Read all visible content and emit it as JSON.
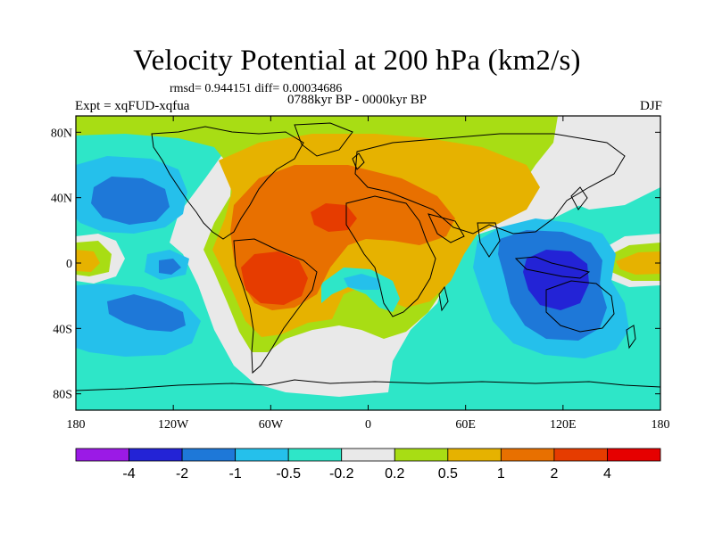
{
  "header": {
    "title": "Velocity Potential at 200 hPa (km2/s)",
    "stats": "rmsd= 0.944151 diff= 0.00034686",
    "experiment": "Expt = xqFUD-xqfua",
    "period": "0788kyr BP - 0000kyr BP",
    "season": "DJF"
  },
  "map": {
    "projection": "cylindrical-equidistant",
    "lon_range": [
      -180,
      180
    ],
    "lat_range": [
      -90,
      90
    ],
    "lat_tick_labels": [
      "80N",
      "40N",
      "0",
      "40S",
      "80S"
    ],
    "lon_tick_labels": [
      "180",
      "120W",
      "60W",
      "0",
      "60E",
      "120E",
      "180"
    ]
  },
  "colorbar": {
    "labels": [
      "-4",
      "-2",
      "-1",
      "-0.5",
      "-0.2",
      "0.2",
      "0.5",
      "1",
      "2",
      "4"
    ],
    "colors": [
      "#9b1ae6",
      "#2323d6",
      "#1e78d8",
      "#25c0eb",
      "#2ee6c8",
      "#e9e9e9",
      "#a8dd14",
      "#e6b200",
      "#e87000",
      "#e63c00",
      "#e60000"
    ]
  },
  "palette": {
    "lt_neg4": "#9b1ae6",
    "neg4_neg2": "#2323d6",
    "neg2_neg1": "#1e78d8",
    "neg1_neg05": "#25c0eb",
    "neg05_neg02": "#2ee6c8",
    "neg02_02": "#e9e9e9",
    "p02_05": "#a8dd14",
    "p05_1": "#e6b200",
    "p1_2": "#e87000",
    "p2_4": "#e63c00",
    "gt_4": "#e60000"
  }
}
